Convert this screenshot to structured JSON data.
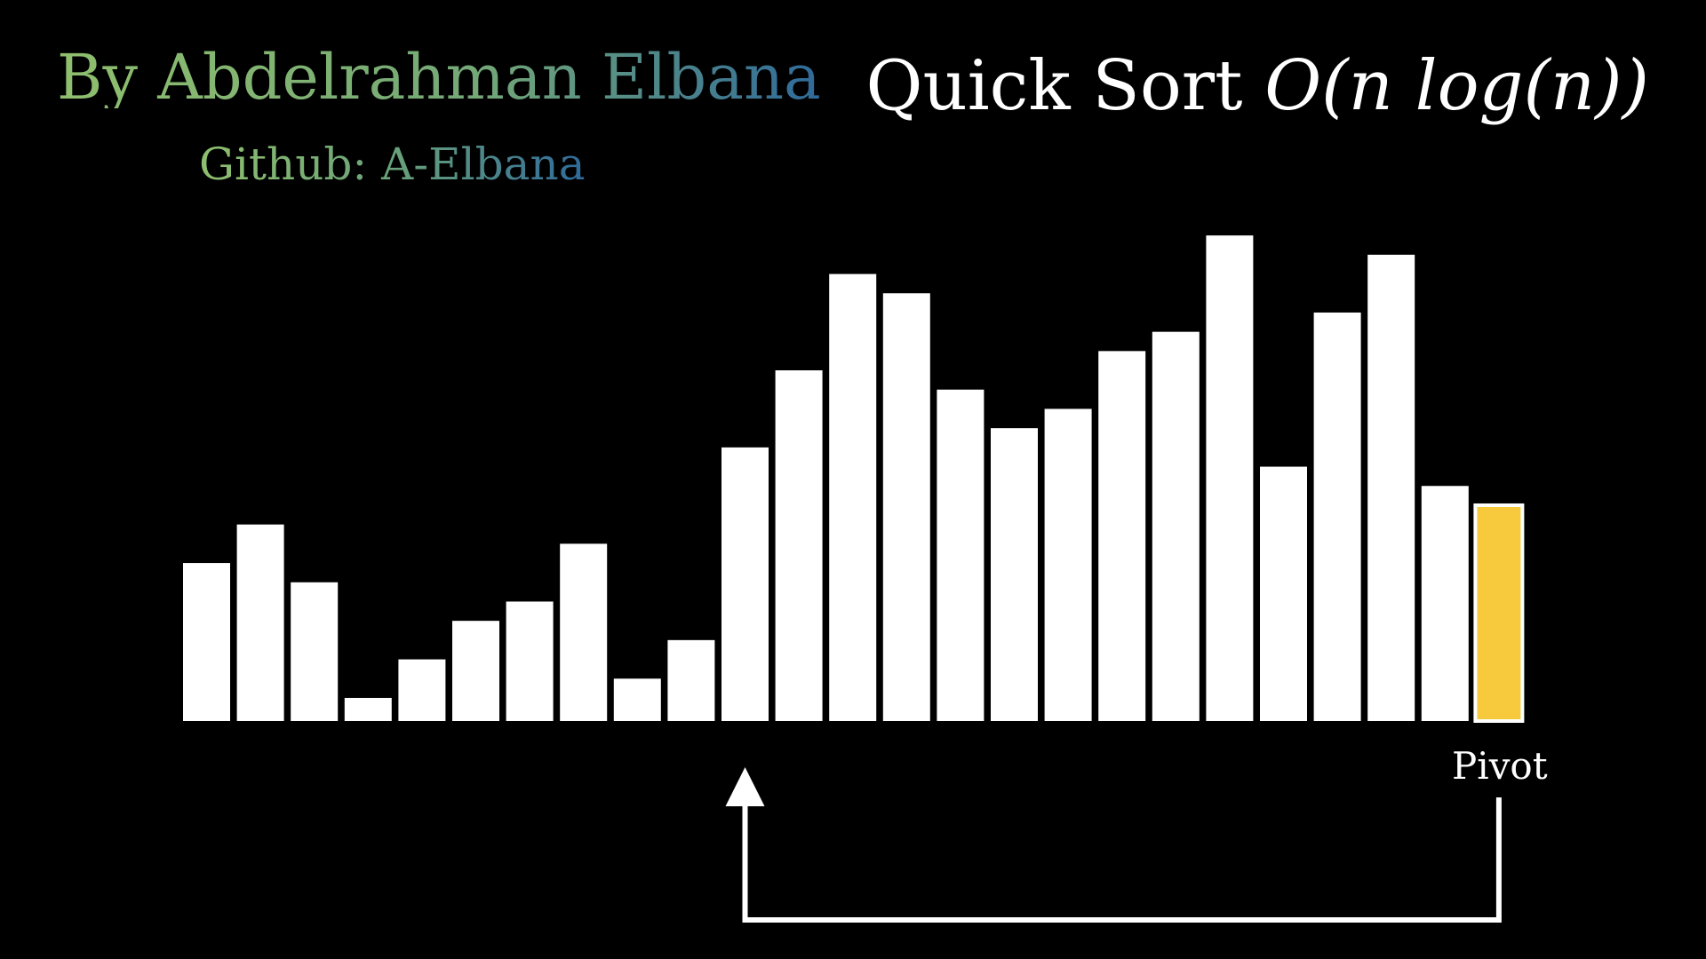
{
  "header": {
    "author": "By Abdelrahman Elbana",
    "github": "Github: A-Elbana",
    "title_text": "Quick Sort",
    "title_math": "O(n log(n))"
  },
  "colors": {
    "background": "#000000",
    "bar": "#ffffff",
    "pivot_fill": "#f7ca3e",
    "arrow": "#ffffff"
  },
  "chart_data": {
    "type": "bar",
    "title": "Quick Sort O(n log(n))",
    "xlabel": "",
    "ylabel": "",
    "ylim": [
      0,
      25
    ],
    "grid": false,
    "values": [
      8.2,
      10.2,
      7.2,
      1.2,
      3.2,
      5.2,
      6.2,
      9.2,
      2.2,
      4.2,
      14.2,
      18.2,
      23.2,
      22.2,
      17.2,
      15.2,
      16.2,
      19.2,
      20.2,
      25.2,
      13.2,
      21.2,
      24.2,
      12.2,
      11.2
    ],
    "highlight_index": 24,
    "annotation": {
      "label": "Pivot",
      "from_index": 24,
      "to_index": 10
    }
  }
}
